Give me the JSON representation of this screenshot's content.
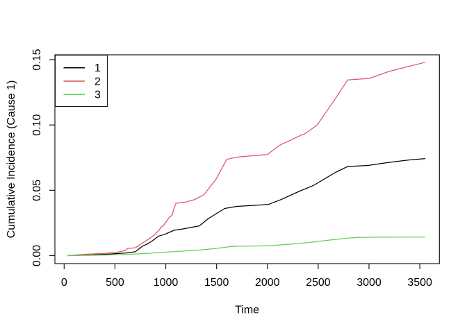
{
  "figure": {
    "background_color": "#ffffff",
    "frame_color": "#000000"
  },
  "chart_data": {
    "type": "line",
    "title": "",
    "xlabel": "Time",
    "ylabel": "Cumulative Incidence (Cause 1)",
    "xlim": [
      -91,
      3691
    ],
    "ylim": [
      -0.006,
      0.1537
    ],
    "x_ticks": [
      0,
      500,
      1000,
      1500,
      2000,
      2500,
      3000,
      3500
    ],
    "x_tick_labels": [
      "0",
      "500",
      "1000",
      "1500",
      "2000",
      "2500",
      "3000",
      "3500"
    ],
    "y_ticks": [
      0.0,
      0.05,
      0.1,
      0.15
    ],
    "y_tick_labels": [
      "0.00",
      "0.05",
      "0.10",
      "0.15"
    ],
    "grid": false,
    "legend": {
      "position": "top-left",
      "entries": [
        {
          "label": "1",
          "color": "#000000"
        },
        {
          "label": "2",
          "color": "#DF536B"
        },
        {
          "label": "3",
          "color": "#61D04F"
        }
      ]
    },
    "series": [
      {
        "name": "1",
        "color": "#000000",
        "points": [
          [
            32,
            0.0
          ],
          [
            250,
            0.0005
          ],
          [
            460,
            0.0013
          ],
          [
            620,
            0.0021
          ],
          [
            700,
            0.003
          ],
          [
            720,
            0.0042
          ],
          [
            770,
            0.0072
          ],
          [
            820,
            0.009
          ],
          [
            870,
            0.0114
          ],
          [
            930,
            0.015
          ],
          [
            990,
            0.0163
          ],
          [
            1080,
            0.0194
          ],
          [
            1160,
            0.0203
          ],
          [
            1330,
            0.0228
          ],
          [
            1420,
            0.0284
          ],
          [
            1580,
            0.0361
          ],
          [
            1700,
            0.0377
          ],
          [
            2010,
            0.0392
          ],
          [
            2130,
            0.0428
          ],
          [
            2310,
            0.0491
          ],
          [
            2450,
            0.0536
          ],
          [
            2670,
            0.0637
          ],
          [
            2790,
            0.0682
          ],
          [
            2990,
            0.069
          ],
          [
            3200,
            0.0714
          ],
          [
            3400,
            0.0733
          ],
          [
            3554,
            0.0743
          ]
        ]
      },
      {
        "name": "2",
        "color": "#DF536B",
        "points": [
          [
            32,
            0.0
          ],
          [
            200,
            0.001
          ],
          [
            400,
            0.0018
          ],
          [
            530,
            0.0027
          ],
          [
            600,
            0.004
          ],
          [
            625,
            0.0056
          ],
          [
            700,
            0.006
          ],
          [
            740,
            0.008
          ],
          [
            830,
            0.0126
          ],
          [
            890,
            0.016
          ],
          [
            935,
            0.0196
          ],
          [
            955,
            0.022
          ],
          [
            975,
            0.0228
          ],
          [
            1010,
            0.0266
          ],
          [
            1040,
            0.03
          ],
          [
            1062,
            0.0306
          ],
          [
            1080,
            0.036
          ],
          [
            1100,
            0.0401
          ],
          [
            1180,
            0.0407
          ],
          [
            1280,
            0.0428
          ],
          [
            1340,
            0.0452
          ],
          [
            1375,
            0.0466
          ],
          [
            1490,
            0.058
          ],
          [
            1600,
            0.0737
          ],
          [
            1700,
            0.0754
          ],
          [
            1830,
            0.0763
          ],
          [
            2000,
            0.0774
          ],
          [
            2100,
            0.0833
          ],
          [
            2125,
            0.0846
          ],
          [
            2330,
            0.0922
          ],
          [
            2365,
            0.0931
          ],
          [
            2490,
            0.1
          ],
          [
            2650,
            0.118
          ],
          [
            2790,
            0.1345
          ],
          [
            3000,
            0.1356
          ],
          [
            3200,
            0.141
          ],
          [
            3400,
            0.145
          ],
          [
            3554,
            0.148
          ]
        ]
      },
      {
        "name": "3",
        "color": "#61D04F",
        "points": [
          [
            32,
            0.0
          ],
          [
            300,
            0.0003
          ],
          [
            500,
            0.0007
          ],
          [
            700,
            0.0012
          ],
          [
            900,
            0.0022
          ],
          [
            1100,
            0.0032
          ],
          [
            1300,
            0.0041
          ],
          [
            1400,
            0.0048
          ],
          [
            1500,
            0.0056
          ],
          [
            1620,
            0.0068
          ],
          [
            1700,
            0.0072
          ],
          [
            1900,
            0.0074
          ],
          [
            2000,
            0.0076
          ],
          [
            2200,
            0.0086
          ],
          [
            2400,
            0.01
          ],
          [
            2600,
            0.0118
          ],
          [
            2790,
            0.0134
          ],
          [
            2900,
            0.014
          ],
          [
            3100,
            0.0141
          ],
          [
            3300,
            0.0142
          ],
          [
            3554,
            0.0143
          ]
        ]
      }
    ]
  }
}
